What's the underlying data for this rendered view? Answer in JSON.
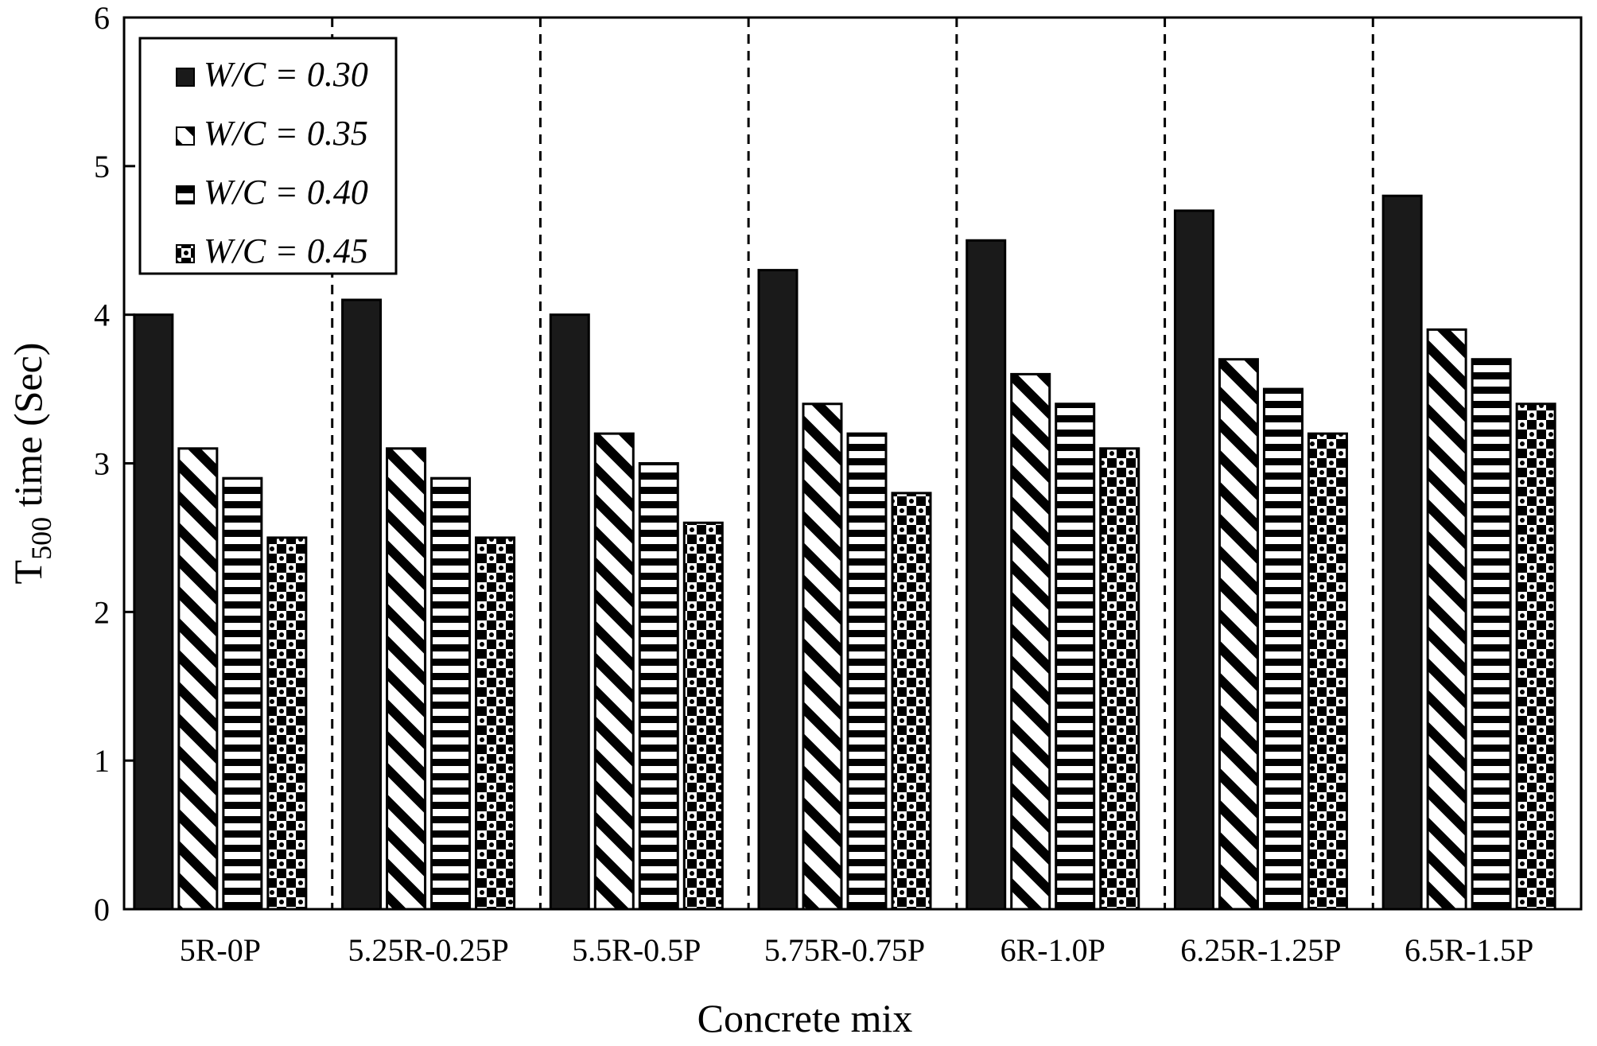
{
  "chart_data": {
    "type": "bar",
    "title": "",
    "xlabel": "Concrete mix",
    "ylabel": {
      "main": "T",
      "subscript": "500",
      "suffix": " time (Sec)"
    },
    "ylim": [
      0,
      6
    ],
    "yticks": [
      "0",
      "1",
      "2",
      "3",
      "4",
      "5",
      "6"
    ],
    "grid": false,
    "group_separators": "dashed vertical lines between groups",
    "legend_position": "top-left",
    "categories": [
      "5R-0P",
      "5.25R-0.25P",
      "5.5R-0.5P",
      "5.75R-0.75P",
      "6R-1.0P",
      "6.25R-1.25P",
      "6.5R-1.5P"
    ],
    "series": [
      {
        "name": "W/C = 0.30",
        "pattern": "solid",
        "values": [
          4.0,
          4.1,
          4.0,
          4.3,
          4.5,
          4.7,
          4.8
        ]
      },
      {
        "name": "W/C = 0.35",
        "pattern": "diagonal",
        "values": [
          3.1,
          3.1,
          3.2,
          3.4,
          3.6,
          3.7,
          3.9
        ]
      },
      {
        "name": "W/C = 0.40",
        "pattern": "horizontal",
        "values": [
          2.9,
          2.9,
          3.0,
          3.2,
          3.4,
          3.5,
          3.7
        ]
      },
      {
        "name": "W/C = 0.45",
        "pattern": "checker",
        "values": [
          2.5,
          2.5,
          2.6,
          2.8,
          3.1,
          3.2,
          3.4
        ]
      }
    ],
    "colors": {
      "ink": "#000000",
      "background": "#ffffff",
      "bar_fill": "#1a1a1a"
    }
  }
}
